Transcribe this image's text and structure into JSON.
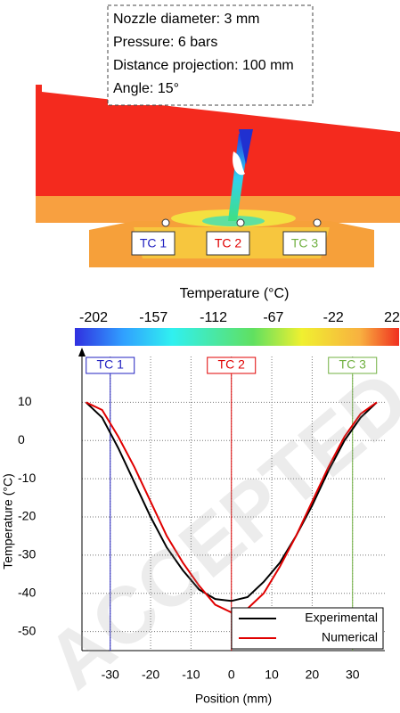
{
  "info_box": [
    "Nozzle diameter: 3 mm",
    "Pressure: 6 bars",
    "Distance projection: 100 mm",
    "Angle: 15°"
  ],
  "probes": [
    "TC 1",
    "TC 2",
    "TC 3"
  ],
  "colorbar": {
    "title": "Temperature (°C)",
    "ticks": [
      -202,
      -157,
      -112,
      -67,
      -22,
      22
    ]
  },
  "watermark": "ACCEPTED",
  "chart_data": {
    "type": "line",
    "x_label": "Position (mm)",
    "y_label": "Temperature (°C)",
    "x": [
      -36,
      -32,
      -28,
      -24,
      -20,
      -16,
      -12,
      -8,
      -4,
      0,
      4,
      8,
      12,
      16,
      20,
      24,
      28,
      32,
      36
    ],
    "series": [
      {
        "name": "Experimental",
        "color": "#000000",
        "values": [
          10,
          6,
          -2,
          -11,
          -20,
          -28,
          -34,
          -39,
          -41.5,
          -42,
          -41,
          -37,
          -32,
          -25,
          -17,
          -8,
          0,
          6,
          10
        ]
      },
      {
        "name": "Numerical",
        "color": "#e00000",
        "values": [
          10,
          8,
          1,
          -7,
          -16,
          -25,
          -32,
          -38,
          -43,
          -45,
          -44,
          -40,
          -33,
          -25,
          -16,
          -7,
          1,
          7,
          10
        ]
      }
    ],
    "markers": [
      {
        "label": "TC 1",
        "x": -30,
        "color": "#2020c0"
      },
      {
        "label": "TC 2",
        "x": 0,
        "color": "#e00000"
      },
      {
        "label": "TC 3",
        "x": 30,
        "color": "#70b040"
      }
    ],
    "xlim": [
      -37,
      38
    ],
    "ylim": [
      -55,
      22
    ],
    "xticks": [
      -30,
      -20,
      -10,
      0,
      10,
      20,
      30
    ],
    "yticks": [
      10,
      0,
      -10,
      -20,
      -30,
      -40,
      -50
    ],
    "grid": true,
    "legend": "lower-right"
  }
}
